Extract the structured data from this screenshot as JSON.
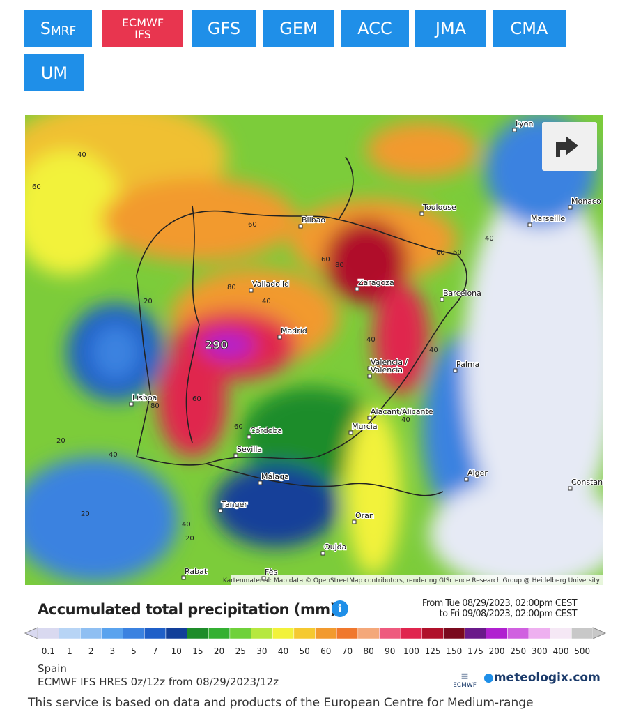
{
  "model_buttons": [
    {
      "big": "S",
      "small": "MRF",
      "active": false
    },
    {
      "line1": "ECMWF",
      "line2": "IFS",
      "active": true
    },
    {
      "label": "GFS",
      "active": false
    },
    {
      "label": "GEM",
      "active": false
    },
    {
      "label": "ACC",
      "active": false
    },
    {
      "label": "JMA",
      "active": false
    },
    {
      "label": "CMA",
      "active": false
    },
    {
      "label": "UM",
      "active": false
    }
  ],
  "map": {
    "cities": [
      "Lyon",
      "Monaco",
      "Marseille",
      "Toulouse",
      "Bilbao",
      "Valladolid",
      "Zaragoza",
      "Barcelona",
      "Madrid",
      "Valencia /",
      "Valencia",
      "Palma",
      "Lisboa",
      "Alacant/Alicante",
      "Murcia",
      "Córdoba",
      "Sevilla",
      "Málaga",
      "Alger",
      "Constantine",
      "Tanger",
      "Oran",
      "Oujda",
      "Rabat",
      "Fès"
    ],
    "contour_labels": [
      "290",
      "60",
      "40",
      "60",
      "40",
      "80",
      "60",
      "80",
      "60",
      "40",
      "20",
      "40",
      "80",
      "60",
      "20",
      "40",
      "60",
      "20",
      "40",
      "20",
      "40",
      "60",
      "40"
    ],
    "attribution": "Kartenmaterial: Map data © OpenStreetMap contributors, rendering GIScience Research Group @ Heidelberg University"
  },
  "legend": {
    "title": "Accumulated total precipitation (mm)",
    "from": "From Tue 08/29/2023, 02:00pm CEST",
    "to": "to Fri 09/08/2023, 02:00pm CEST",
    "values": [
      "0.1",
      "1",
      "2",
      "3",
      "5",
      "7",
      "10",
      "15",
      "20",
      "25",
      "30",
      "40",
      "50",
      "60",
      "70",
      "80",
      "90",
      "100",
      "125",
      "150",
      "175",
      "200",
      "250",
      "300",
      "400",
      "500"
    ],
    "colors": [
      "#d9d9f0",
      "#b7d4f5",
      "#8fbff2",
      "#5aa3ee",
      "#3b82e0",
      "#1f5fc8",
      "#123f99",
      "#1e8c2a",
      "#34b032",
      "#6fd13a",
      "#b6e83f",
      "#f2f23a",
      "#f5c930",
      "#f29a2e",
      "#f0782d",
      "#f4a87a",
      "#ee5a7e",
      "#e0254e",
      "#b0102a",
      "#7a0a1e",
      "#6a1a8a",
      "#b020d0",
      "#d060e0",
      "#eeb0f0",
      "#f5e8f5",
      "#c8c8c8"
    ]
  },
  "footer": {
    "region": "Spain",
    "model": "ECMWF IFS HRES 0z/12z from 08/29/2023/12z",
    "ecmwf": "ECMWF",
    "brand": "meteologix.com",
    "notice": "This service is based on data and products of the European Centre for Medium-range"
  }
}
